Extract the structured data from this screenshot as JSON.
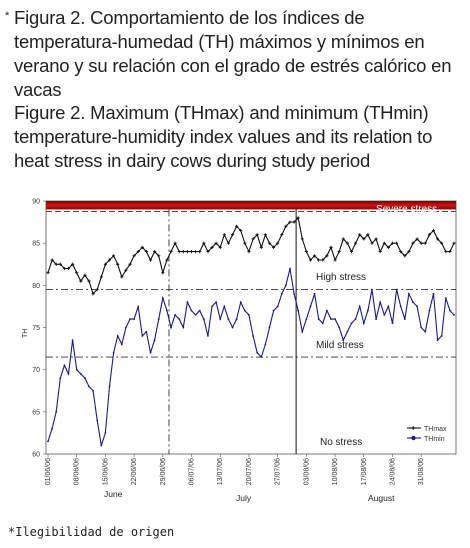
{
  "caption_es": {
    "marker": "*",
    "text": "Figura 2. Comportamiento de los índices de temperatura-humedad (TH) máximos y mínimos en verano y su relación con el grado de estrés calórico en vacas"
  },
  "caption_en": {
    "text": "Figure 2. Maximum (THmax) and minimum (THmin) temperature-humidity index values and its relation to heat stress in dairy cows during study period"
  },
  "footnote": "*Ilegibilidad de origen",
  "chart_data": {
    "type": "line",
    "ylabel": "TH",
    "ylim": [
      60,
      90
    ],
    "y_ticks": [
      "60",
      "65",
      "70",
      "75",
      "80",
      "85",
      "90"
    ],
    "x_tick_labels": [
      "01/06/06",
      "08/06/06",
      "15/06/06",
      "22/06/06",
      "29/06/06",
      "06/07/06",
      "13/07/06",
      "20/07/06",
      "27/07/06",
      "03/08/06",
      "10/08/06",
      "17/08/06",
      "24/08/06",
      "31/08/06"
    ],
    "month_labels": [
      "June",
      "July",
      "August"
    ],
    "zones": [
      {
        "label": "Severe stress",
        "threshold": 89,
        "color": "#b01010"
      },
      {
        "label": "High stress",
        "threshold": 79.5
      },
      {
        "label": "Mild stress",
        "threshold": 71.5
      },
      {
        "label": "No stress"
      }
    ],
    "series": [
      {
        "name": "THmax",
        "color": "#111111",
        "values": [
          81.5,
          83,
          82.5,
          82.5,
          82,
          82,
          82.5,
          81.5,
          80.5,
          81.2,
          80.5,
          79,
          79.5,
          81,
          82.5,
          83,
          83.5,
          82.5,
          81,
          81.8,
          82.5,
          83.5,
          84,
          84.5,
          84,
          83,
          84,
          83.5,
          81.5,
          83,
          84,
          85,
          84,
          84,
          84,
          84,
          84,
          84,
          85,
          84,
          84.5,
          85,
          84.5,
          86,
          85,
          86,
          87,
          86.5,
          85,
          84,
          85.5,
          86,
          84.5,
          86,
          85,
          84.5,
          85,
          86,
          87,
          87.5,
          87.5,
          88,
          85.5,
          84,
          83,
          83.5,
          83,
          83,
          83.5,
          84.5,
          83,
          84,
          85.5,
          85,
          84,
          85,
          86,
          85.5,
          86,
          85,
          85.5,
          84,
          85,
          84.5,
          85,
          85,
          84,
          83.5,
          84,
          85,
          85.5,
          85,
          85,
          86,
          86.5,
          85.5,
          85,
          84,
          84,
          85
        ]
      },
      {
        "name": "THmin",
        "color": "#1a1a8c",
        "values": [
          61.5,
          63,
          65,
          69,
          70.5,
          69.5,
          73.5,
          70,
          69.5,
          69,
          68,
          67.5,
          64,
          61,
          62.5,
          68,
          72,
          74,
          73,
          75,
          76,
          76,
          77.5,
          74,
          74.5,
          72,
          73.5,
          76,
          78.5,
          77,
          75,
          76.5,
          76,
          75,
          78,
          77,
          76.5,
          77,
          76,
          74,
          77.5,
          78,
          76,
          77.5,
          76,
          75,
          76,
          78,
          77,
          76.5,
          74,
          72,
          71.5,
          73,
          75,
          77,
          77.5,
          79,
          80,
          82,
          79,
          77,
          74.5,
          76,
          77.5,
          79,
          76,
          75.5,
          77,
          76,
          76,
          75,
          73.5,
          74.5,
          75.5,
          76,
          77.5,
          75.5,
          77,
          79.5,
          76,
          78,
          76.5,
          77.5,
          75.5,
          79.5,
          77.5,
          76,
          79,
          78,
          77.5,
          75,
          74.5,
          77,
          79,
          73.5,
          74,
          78.5,
          77,
          76.5
        ]
      }
    ],
    "legend": [
      "THmax",
      "THmin"
    ],
    "legend_position": "bottom-right"
  }
}
